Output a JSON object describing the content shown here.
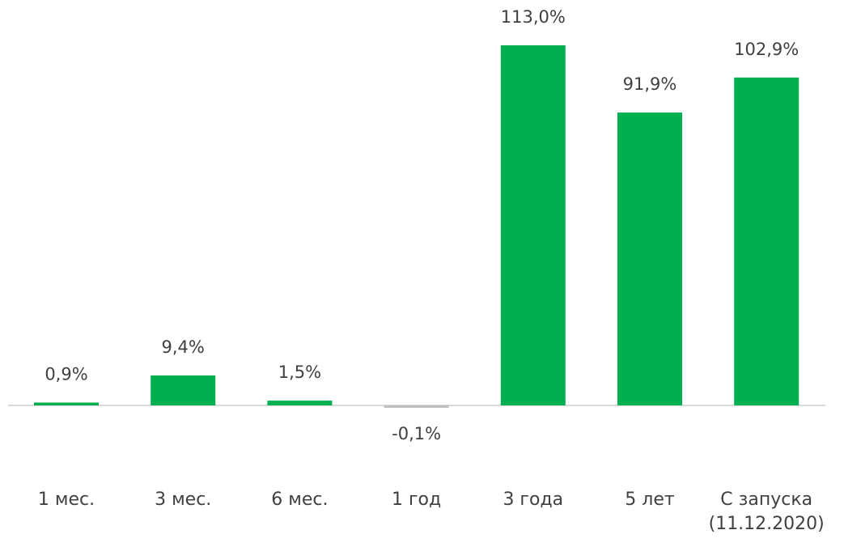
{
  "chart_data": {
    "type": "bar",
    "categories": [
      "1 мес.",
      "3 мес.",
      "6 мес.",
      "1 год",
      "3 года",
      "5 лет",
      "С запуска (11.12.2020)"
    ],
    "values": [
      0.9,
      9.4,
      1.5,
      -0.1,
      113.0,
      91.9,
      102.9
    ],
    "value_labels": [
      "0,9%",
      "9,4%",
      "1,5%",
      "-0,1%",
      "113,0%",
      "91,9%",
      "102,9%"
    ],
    "colors": [
      "#00b050",
      "#00b050",
      "#00b050",
      "#bfbfbf",
      "#00b050",
      "#00b050",
      "#00b050"
    ]
  }
}
